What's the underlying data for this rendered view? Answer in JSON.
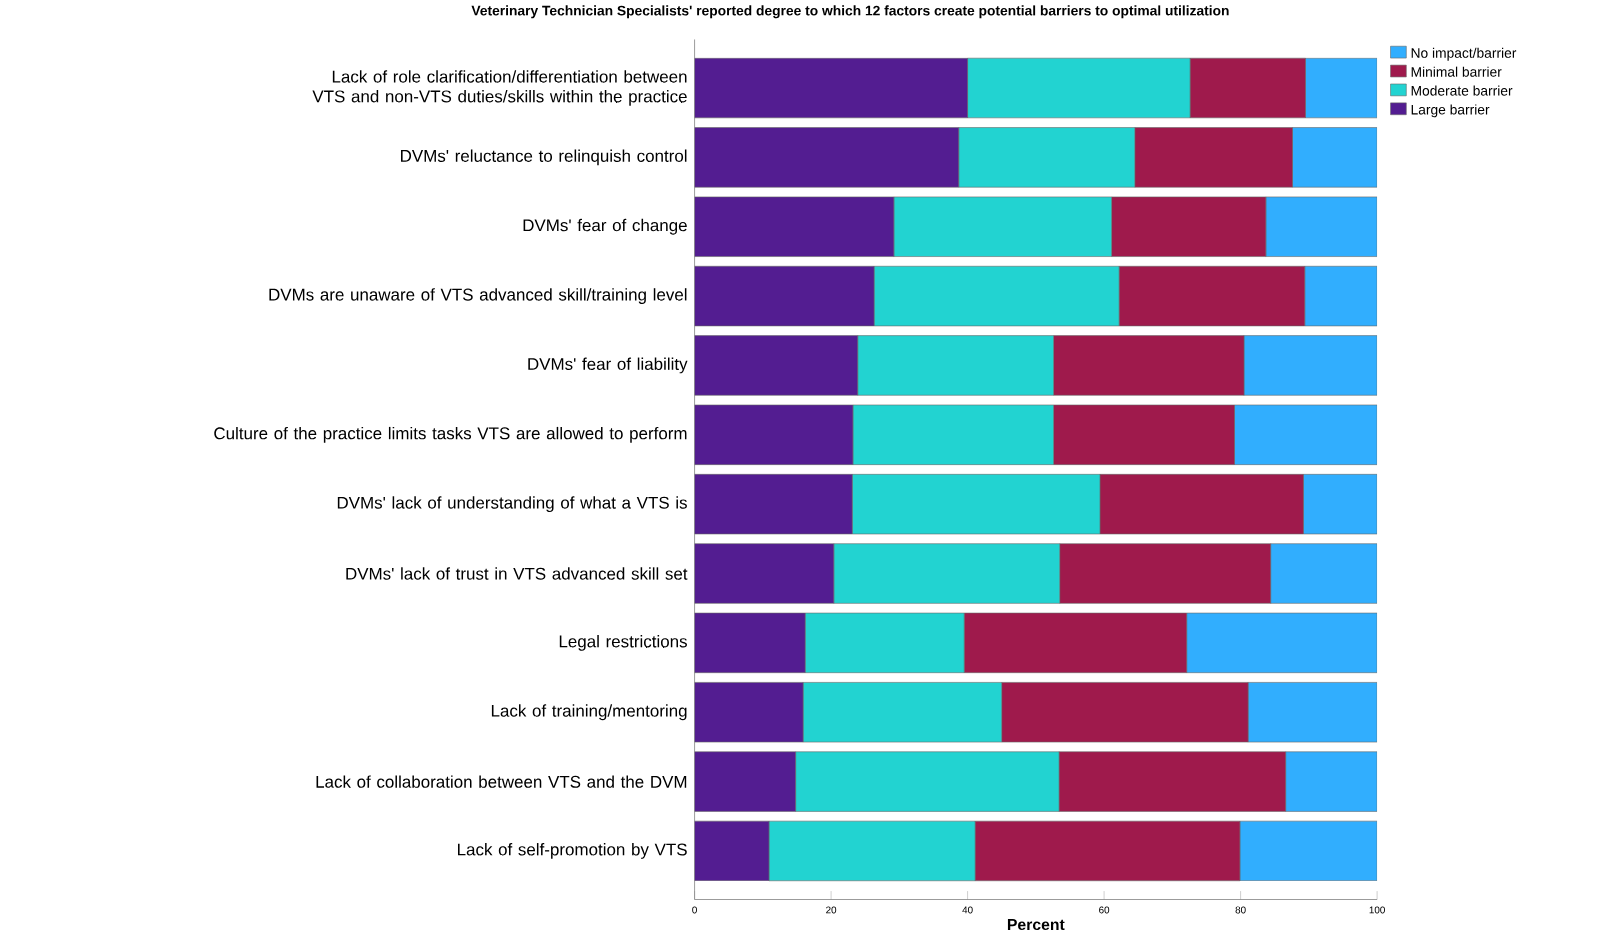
{
  "chart_data": {
    "type": "bar",
    "orientation": "horizontal",
    "stacked": true,
    "title": "Veterinary Technician Specialists' reported degree to which 12 factors create potential barriers to optimal utilization",
    "xlabel": "Percent",
    "categories": [
      "Lack of role clarification/differentiation between VTS and non-VTS duties/skills within the practice",
      "DVMs' reluctance to relinquish control",
      "DVMs' fear of change",
      "DVMs are unaware of VTS advanced skill/training level",
      "DVMs' fear of liability",
      "Culture of the practice limits tasks VTS are allowed to perform",
      "DVMs' lack of understanding of what a VTS is",
      "DVMs' lack of trust in VTS advanced skill set",
      "Legal restrictions",
      "Lack of training/mentoring",
      "Lack of collaboration between VTS and the DVM",
      "Lack of self-promotion by VTS"
    ],
    "series": [
      {
        "name": "Large barrier",
        "color": "#531d91",
        "values": [
          40.0,
          38.7,
          29.2,
          26.3,
          23.9,
          23.2,
          23.1,
          20.4,
          16.2,
          15.9,
          14.8,
          10.9
        ]
      },
      {
        "name": "Moderate barrier",
        "color": "#22d3d1",
        "values": [
          32.6,
          25.8,
          31.9,
          35.9,
          28.7,
          29.4,
          36.3,
          33.1,
          23.3,
          29.1,
          38.6,
          30.2
        ]
      },
      {
        "name": "Minimal barrier",
        "color": "#9f1a4c",
        "values": [
          16.9,
          23.1,
          22.6,
          27.2,
          27.9,
          26.5,
          29.8,
          30.9,
          32.6,
          36.1,
          33.2,
          38.8
        ]
      },
      {
        "name": "No impact/barrier",
        "color": "#31aefe",
        "values": [
          10.5,
          12.4,
          16.3,
          10.6,
          19.5,
          20.9,
          10.8,
          15.6,
          27.9,
          18.9,
          13.4,
          20.1
        ]
      }
    ],
    "xlim": [
      0,
      100
    ],
    "xticks": [
      0,
      20,
      40,
      60,
      80,
      100
    ],
    "legend": "top right",
    "grid": false
  }
}
